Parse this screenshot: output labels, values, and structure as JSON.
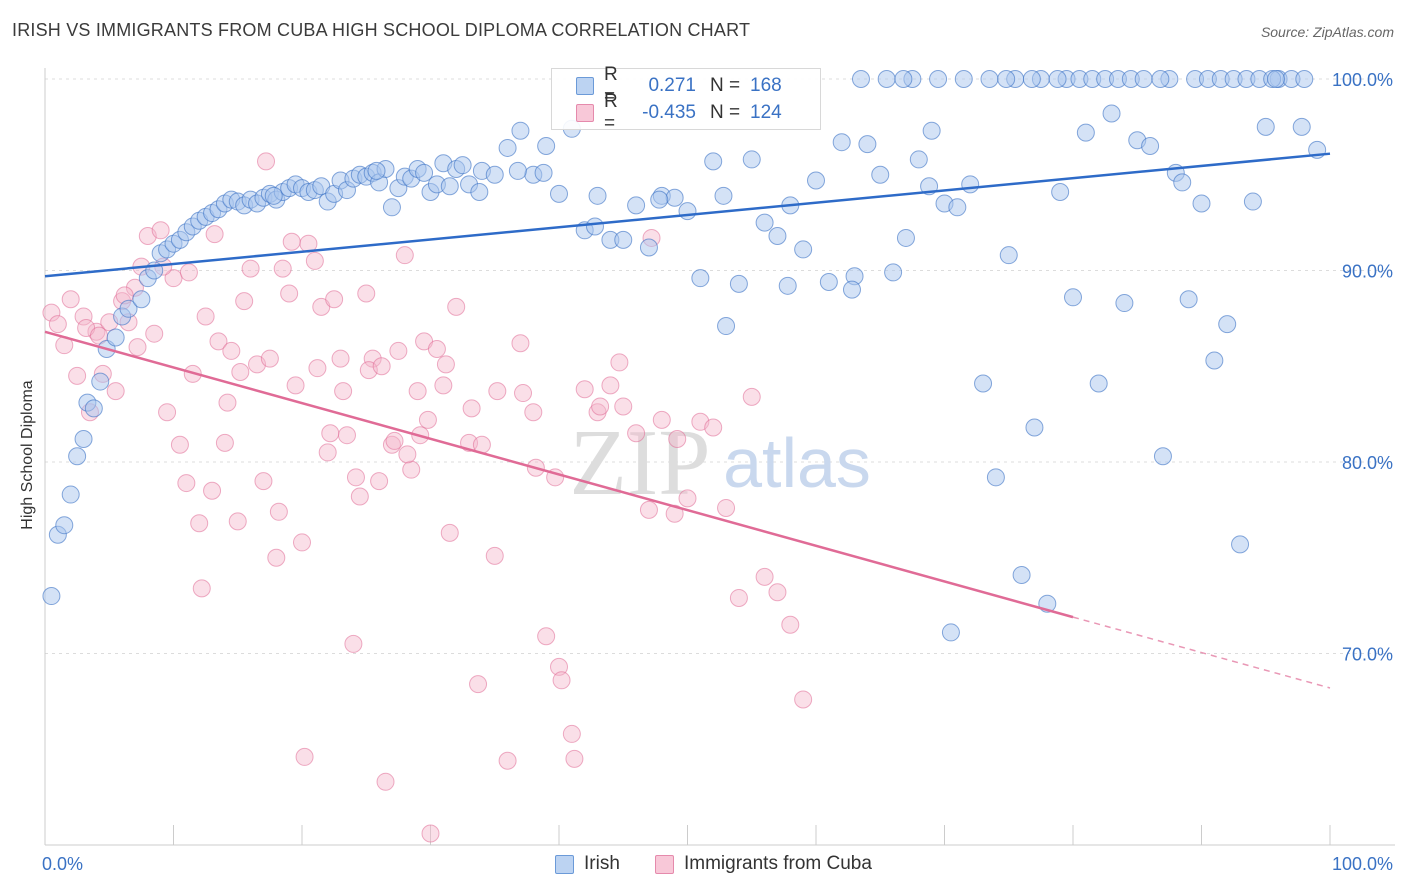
{
  "title": "IRISH VS IMMIGRANTS FROM CUBA HIGH SCHOOL DIPLOMA CORRELATION CHART",
  "source": "Source: ZipAtlas.com",
  "watermark": {
    "zip": "ZIP",
    "atlas": "atlas"
  },
  "colors": {
    "blue": "#3a72c4",
    "blue_fill": "#a9c6ee",
    "blue_line": "#2e6bc8",
    "pink": "#e06b96",
    "pink_fill": "#f5b8cc",
    "grid": "#dcdcdc",
    "axis_text": "#3a72c4"
  },
  "legend": {
    "irish": {
      "r_label": "R =",
      "r_value": "0.271",
      "n_label": "N =",
      "n_value": "168"
    },
    "cuba": {
      "r_label": "R =",
      "r_value": "-0.435",
      "n_label": "N =",
      "n_value": "124"
    }
  },
  "bottom_legend": {
    "irish": "Irish",
    "cuba": "Immigrants from Cuba"
  },
  "chart_data": {
    "type": "scatter",
    "title": "IRISH VS IMMIGRANTS FROM CUBA HIGH SCHOOL DIPLOMA CORRELATION CHART",
    "xlabel": "",
    "ylabel": "High School Diploma",
    "xlim": [
      0,
      100
    ],
    "ylim": [
      60,
      102
    ],
    "x_tick_labels": [
      "0.0%",
      "100.0%"
    ],
    "y_ticks": [
      70,
      80,
      90,
      100
    ],
    "y_tick_labels": [
      "70.0%",
      "80.0%",
      "90.0%",
      "100.0%"
    ],
    "grid": true,
    "series": [
      {
        "name": "Irish",
        "trend": {
          "x": [
            0,
            100
          ],
          "y": [
            89.7,
            96.1
          ]
        },
        "points": [
          [
            0.5,
            73.0
          ],
          [
            1.0,
            76.2
          ],
          [
            1.5,
            76.7
          ],
          [
            2.0,
            78.3
          ],
          [
            2.5,
            80.3
          ],
          [
            3.0,
            81.2
          ],
          [
            3.3,
            83.1
          ],
          [
            3.8,
            82.8
          ],
          [
            4.3,
            84.2
          ],
          [
            4.8,
            85.9
          ],
          [
            5.5,
            86.5
          ],
          [
            6.0,
            87.6
          ],
          [
            6.5,
            88.0
          ],
          [
            7.5,
            88.5
          ],
          [
            8.0,
            89.6
          ],
          [
            8.5,
            90.0
          ],
          [
            9.0,
            90.9
          ],
          [
            9.5,
            91.1
          ],
          [
            10.0,
            91.4
          ],
          [
            10.5,
            91.6
          ],
          [
            11.0,
            92.0
          ],
          [
            11.5,
            92.3
          ],
          [
            12.0,
            92.6
          ],
          [
            12.5,
            92.8
          ],
          [
            13.0,
            93.0
          ],
          [
            13.5,
            93.2
          ],
          [
            14.0,
            93.5
          ],
          [
            14.5,
            93.7
          ],
          [
            15.0,
            93.6
          ],
          [
            15.5,
            93.4
          ],
          [
            16.0,
            93.7
          ],
          [
            16.5,
            93.5
          ],
          [
            17.0,
            93.8
          ],
          [
            17.5,
            94.0
          ],
          [
            18.0,
            93.7
          ],
          [
            18.5,
            94.1
          ],
          [
            19.0,
            94.3
          ],
          [
            19.5,
            94.5
          ],
          [
            20.0,
            94.3
          ],
          [
            20.5,
            94.1
          ],
          [
            21.0,
            94.2
          ],
          [
            21.5,
            94.4
          ],
          [
            22.0,
            93.6
          ],
          [
            22.5,
            94.0
          ],
          [
            23.0,
            94.7
          ],
          [
            23.5,
            94.2
          ],
          [
            24.0,
            94.8
          ],
          [
            24.5,
            95.0
          ],
          [
            25.0,
            94.9
          ],
          [
            25.5,
            95.1
          ],
          [
            26.0,
            94.6
          ],
          [
            26.5,
            95.3
          ],
          [
            27.0,
            93.3
          ],
          [
            27.5,
            94.3
          ],
          [
            28.0,
            94.9
          ],
          [
            28.5,
            94.8
          ],
          [
            29.0,
            95.3
          ],
          [
            29.5,
            95.1
          ],
          [
            30.0,
            94.1
          ],
          [
            30.5,
            94.5
          ],
          [
            31.0,
            95.6
          ],
          [
            31.5,
            94.4
          ],
          [
            32.0,
            95.3
          ],
          [
            32.5,
            95.5
          ],
          [
            33.0,
            94.5
          ],
          [
            34.0,
            95.2
          ],
          [
            35.0,
            95.0
          ],
          [
            36.0,
            96.4
          ],
          [
            37.0,
            97.3
          ],
          [
            38.0,
            95.0
          ],
          [
            39.0,
            96.5
          ],
          [
            40.0,
            94.0
          ],
          [
            41.0,
            97.4
          ],
          [
            42.0,
            92.1
          ],
          [
            43.0,
            93.9
          ],
          [
            44.0,
            91.6
          ],
          [
            45.0,
            91.6
          ],
          [
            46.0,
            93.4
          ],
          [
            47.0,
            91.2
          ],
          [
            48.0,
            93.9
          ],
          [
            49.0,
            93.8
          ],
          [
            50.0,
            93.1
          ],
          [
            51.0,
            89.6
          ],
          [
            52.0,
            95.7
          ],
          [
            53.0,
            87.1
          ],
          [
            54.0,
            89.3
          ],
          [
            55.0,
            95.8
          ],
          [
            56.0,
            92.5
          ],
          [
            57.0,
            91.8
          ],
          [
            58.0,
            93.4
          ],
          [
            59.0,
            91.1
          ],
          [
            60.0,
            94.7
          ],
          [
            61.0,
            89.4
          ],
          [
            62.0,
            96.7
          ],
          [
            63.0,
            89.7
          ],
          [
            64.0,
            96.6
          ],
          [
            65.0,
            95.0
          ],
          [
            66.0,
            89.9
          ],
          [
            67.0,
            91.7
          ],
          [
            68.0,
            95.8
          ],
          [
            69.0,
            97.3
          ],
          [
            70.0,
            93.5
          ],
          [
            71.0,
            93.3
          ],
          [
            72.0,
            94.5
          ],
          [
            73.0,
            84.1
          ],
          [
            74.0,
            79.2
          ],
          [
            75.0,
            90.8
          ],
          [
            76.0,
            74.1
          ],
          [
            77.0,
            81.8
          ],
          [
            78.0,
            72.6
          ],
          [
            79.0,
            94.1
          ],
          [
            80.0,
            88.6
          ],
          [
            81.0,
            97.2
          ],
          [
            82.0,
            84.1
          ],
          [
            83.0,
            98.2
          ],
          [
            84.0,
            88.3
          ],
          [
            85.0,
            96.8
          ],
          [
            86.0,
            96.5
          ],
          [
            87.0,
            80.3
          ],
          [
            88.0,
            95.1
          ],
          [
            89.0,
            88.5
          ],
          [
            90.0,
            93.5
          ],
          [
            91.0,
            85.3
          ],
          [
            92.0,
            87.2
          ],
          [
            93.0,
            75.7
          ],
          [
            94.0,
            93.6
          ],
          [
            95.0,
            97.5
          ],
          [
            96.0,
            100.0
          ],
          [
            97.0,
            100.0
          ],
          [
            98.0,
            100.0
          ],
          [
            99.0,
            96.3
          ],
          [
            63.5,
            100.0
          ],
          [
            65.5,
            100.0
          ],
          [
            67.5,
            100.0
          ],
          [
            69.5,
            100.0
          ],
          [
            70.5,
            71.1
          ],
          [
            71.5,
            100.0
          ],
          [
            73.5,
            100.0
          ],
          [
            75.5,
            100.0
          ],
          [
            77.5,
            100.0
          ],
          [
            79.5,
            100.0
          ],
          [
            80.5,
            100.0
          ],
          [
            81.5,
            100.0
          ],
          [
            82.5,
            100.0
          ],
          [
            83.5,
            100.0
          ],
          [
            84.5,
            100.0
          ],
          [
            85.5,
            100.0
          ],
          [
            87.5,
            100.0
          ],
          [
            88.5,
            94.6
          ],
          [
            89.5,
            100.0
          ],
          [
            90.5,
            100.0
          ],
          [
            91.5,
            100.0
          ],
          [
            92.5,
            100.0
          ],
          [
            93.5,
            100.0
          ],
          [
            94.5,
            100.0
          ],
          [
            95.5,
            100.0
          ],
          [
            17.8,
            93.9
          ],
          [
            25.8,
            95.2
          ],
          [
            33.8,
            94.1
          ],
          [
            36.8,
            95.2
          ],
          [
            38.8,
            95.1
          ],
          [
            42.8,
            92.3
          ],
          [
            47.8,
            93.7
          ],
          [
            52.8,
            93.9
          ],
          [
            57.8,
            89.2
          ],
          [
            62.8,
            89.0
          ],
          [
            66.8,
            100.0
          ],
          [
            68.8,
            94.4
          ],
          [
            74.8,
            100.0
          ],
          [
            76.8,
            100.0
          ],
          [
            78.8,
            100.0
          ],
          [
            86.8,
            100.0
          ],
          [
            95.8,
            100.0
          ],
          [
            97.8,
            97.5
          ]
        ]
      },
      {
        "name": "Immigrants from Cuba",
        "trend": {
          "x": [
            0,
            80
          ],
          "y": [
            86.8,
            71.9
          ]
        },
        "trend_dashed": {
          "x": [
            80,
            100
          ],
          "y": [
            71.9,
            68.2
          ]
        },
        "points": [
          [
            0.5,
            87.8
          ],
          [
            1.0,
            87.2
          ],
          [
            1.5,
            86.1
          ],
          [
            2.0,
            88.5
          ],
          [
            2.5,
            84.5
          ],
          [
            3.0,
            87.6
          ],
          [
            3.5,
            82.6
          ],
          [
            4.0,
            86.8
          ],
          [
            4.5,
            84.6
          ],
          [
            5.0,
            87.3
          ],
          [
            5.5,
            83.7
          ],
          [
            6.0,
            88.4
          ],
          [
            6.5,
            87.3
          ],
          [
            7.0,
            89.1
          ],
          [
            7.5,
            90.2
          ],
          [
            8.0,
            91.8
          ],
          [
            8.5,
            86.7
          ],
          [
            9.0,
            92.1
          ],
          [
            9.5,
            82.6
          ],
          [
            10.0,
            89.6
          ],
          [
            10.5,
            80.9
          ],
          [
            11.0,
            78.9
          ],
          [
            11.5,
            84.6
          ],
          [
            12.0,
            76.8
          ],
          [
            12.5,
            87.6
          ],
          [
            13.0,
            78.5
          ],
          [
            13.5,
            86.3
          ],
          [
            14.0,
            81.0
          ],
          [
            14.5,
            85.8
          ],
          [
            15.0,
            76.9
          ],
          [
            15.5,
            88.4
          ],
          [
            16.0,
            90.1
          ],
          [
            16.5,
            85.1
          ],
          [
            17.0,
            79.0
          ],
          [
            17.5,
            85.4
          ],
          [
            18.0,
            75.0
          ],
          [
            18.5,
            90.1
          ],
          [
            19.0,
            88.8
          ],
          [
            19.5,
            84.0
          ],
          [
            20.0,
            75.8
          ],
          [
            20.5,
            91.4
          ],
          [
            21.0,
            90.5
          ],
          [
            21.5,
            88.1
          ],
          [
            22.0,
            80.5
          ],
          [
            22.5,
            88.5
          ],
          [
            23.0,
            85.4
          ],
          [
            23.5,
            81.4
          ],
          [
            24.0,
            70.5
          ],
          [
            24.5,
            78.2
          ],
          [
            25.0,
            88.8
          ],
          [
            25.5,
            85.4
          ],
          [
            26.0,
            79.0
          ],
          [
            26.5,
            63.3
          ],
          [
            27.0,
            80.9
          ],
          [
            27.5,
            85.8
          ],
          [
            28.0,
            90.8
          ],
          [
            28.5,
            79.6
          ],
          [
            29.0,
            83.7
          ],
          [
            29.5,
            86.3
          ],
          [
            30.0,
            60.6
          ],
          [
            30.5,
            85.9
          ],
          [
            31.0,
            84.0
          ],
          [
            31.5,
            76.3
          ],
          [
            32.0,
            88.1
          ],
          [
            33.0,
            81.0
          ],
          [
            34.0,
            80.9
          ],
          [
            35.0,
            75.1
          ],
          [
            36.0,
            64.4
          ],
          [
            37.0,
            86.2
          ],
          [
            38.0,
            82.6
          ],
          [
            39.0,
            70.9
          ],
          [
            40.0,
            69.3
          ],
          [
            41.0,
            65.8
          ],
          [
            42.0,
            83.8
          ],
          [
            43.0,
            82.6
          ],
          [
            44.0,
            84.0
          ],
          [
            45.0,
            82.9
          ],
          [
            46.0,
            81.5
          ],
          [
            47.0,
            77.5
          ],
          [
            48.0,
            82.2
          ],
          [
            49.0,
            77.3
          ],
          [
            50.0,
            78.1
          ],
          [
            51.0,
            82.1
          ],
          [
            52.0,
            81.8
          ],
          [
            53.0,
            77.6
          ],
          [
            54.0,
            72.9
          ],
          [
            55.0,
            83.4
          ],
          [
            56.0,
            74.0
          ],
          [
            57.0,
            73.2
          ],
          [
            58.0,
            71.5
          ],
          [
            59.0,
            67.6
          ],
          [
            3.2,
            87.0
          ],
          [
            4.2,
            86.6
          ],
          [
            6.2,
            88.7
          ],
          [
            7.2,
            86.0
          ],
          [
            9.2,
            90.2
          ],
          [
            11.2,
            89.9
          ],
          [
            12.2,
            73.4
          ],
          [
            13.2,
            91.9
          ],
          [
            14.2,
            83.1
          ],
          [
            15.2,
            84.7
          ],
          [
            17.2,
            95.7
          ],
          [
            18.2,
            77.4
          ],
          [
            19.2,
            91.5
          ],
          [
            20.2,
            64.6
          ],
          [
            21.2,
            84.9
          ],
          [
            22.2,
            81.5
          ],
          [
            23.2,
            83.7
          ],
          [
            24.2,
            79.2
          ],
          [
            25.2,
            84.8
          ],
          [
            26.2,
            85.0
          ],
          [
            27.2,
            81.1
          ],
          [
            28.2,
            80.4
          ],
          [
            29.2,
            81.4
          ],
          [
            29.8,
            82.2
          ],
          [
            31.2,
            85.1
          ],
          [
            33.2,
            82.8
          ],
          [
            35.2,
            83.7
          ],
          [
            37.2,
            83.6
          ],
          [
            38.2,
            79.7
          ],
          [
            40.2,
            68.6
          ],
          [
            41.2,
            64.5
          ],
          [
            43.2,
            82.9
          ],
          [
            47.2,
            91.7
          ],
          [
            49.2,
            81.2
          ],
          [
            33.7,
            68.4
          ],
          [
            39.7,
            79.2
          ],
          [
            44.7,
            85.2
          ]
        ]
      }
    ]
  }
}
